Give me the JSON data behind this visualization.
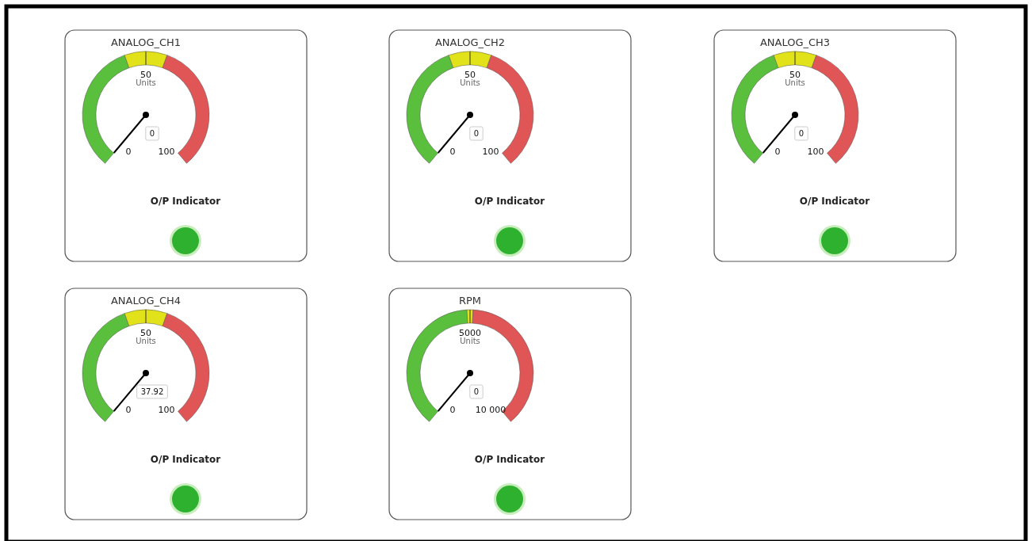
{
  "chart_data": [
    {
      "type": "donut",
      "title": "ANALOG_CH1",
      "categories": [
        null,
        null,
        null
      ],
      "values": [
        43,
        14,
        43
      ],
      "colors": [
        "#5abf3c",
        "#e2e21a",
        "#e05656"
      ],
      "needle": null,
      "annotations": [
        "0",
        "50",
        "Units",
        "100",
        "0",
        "O/P Indicator"
      ]
    },
    {
      "type": "donut",
      "title": "ANALOG_CH2",
      "categories": [
        null,
        null,
        null
      ],
      "values": [
        43,
        14,
        43
      ],
      "colors": [
        "#5abf3c",
        "#e2e21a",
        "#e05656"
      ],
      "needle": null,
      "annotations": [
        "0",
        "50",
        "Units",
        "100",
        "0",
        "O/P Indicator"
      ]
    },
    {
      "type": "donut",
      "title": "ANALOG_CH3",
      "categories": [
        null,
        null,
        null
      ],
      "values": [
        43,
        14,
        43
      ],
      "colors": [
        "#5abf3c",
        "#e2e21a",
        "#e05656"
      ],
      "needle": null,
      "annotations": [
        "0",
        "50",
        "Units",
        "100",
        "0",
        "O/P Indicator"
      ]
    },
    {
      "type": "donut",
      "title": "ANALOG_CH4",
      "categories": [
        null,
        null,
        null
      ],
      "values": [
        43,
        14,
        43
      ],
      "colors": [
        "#5abf3c",
        "#e2e21a",
        "#e05656"
      ],
      "needle": null,
      "annotations": [
        "0",
        "50",
        "Units",
        "100",
        "37.92",
        "O/P Indicator"
      ]
    },
    {
      "type": "donut",
      "title": "RPM",
      "categories": [
        null,
        null,
        null
      ],
      "values": [
        49,
        2,
        49
      ],
      "colors": [
        "#5abf3c",
        "#e2e21a",
        "#e05656"
      ],
      "needle": null,
      "annotations": [
        "0",
        "5000",
        "Units",
        "10 000",
        "0",
        "O/P Indicator"
      ]
    }
  ]
}
